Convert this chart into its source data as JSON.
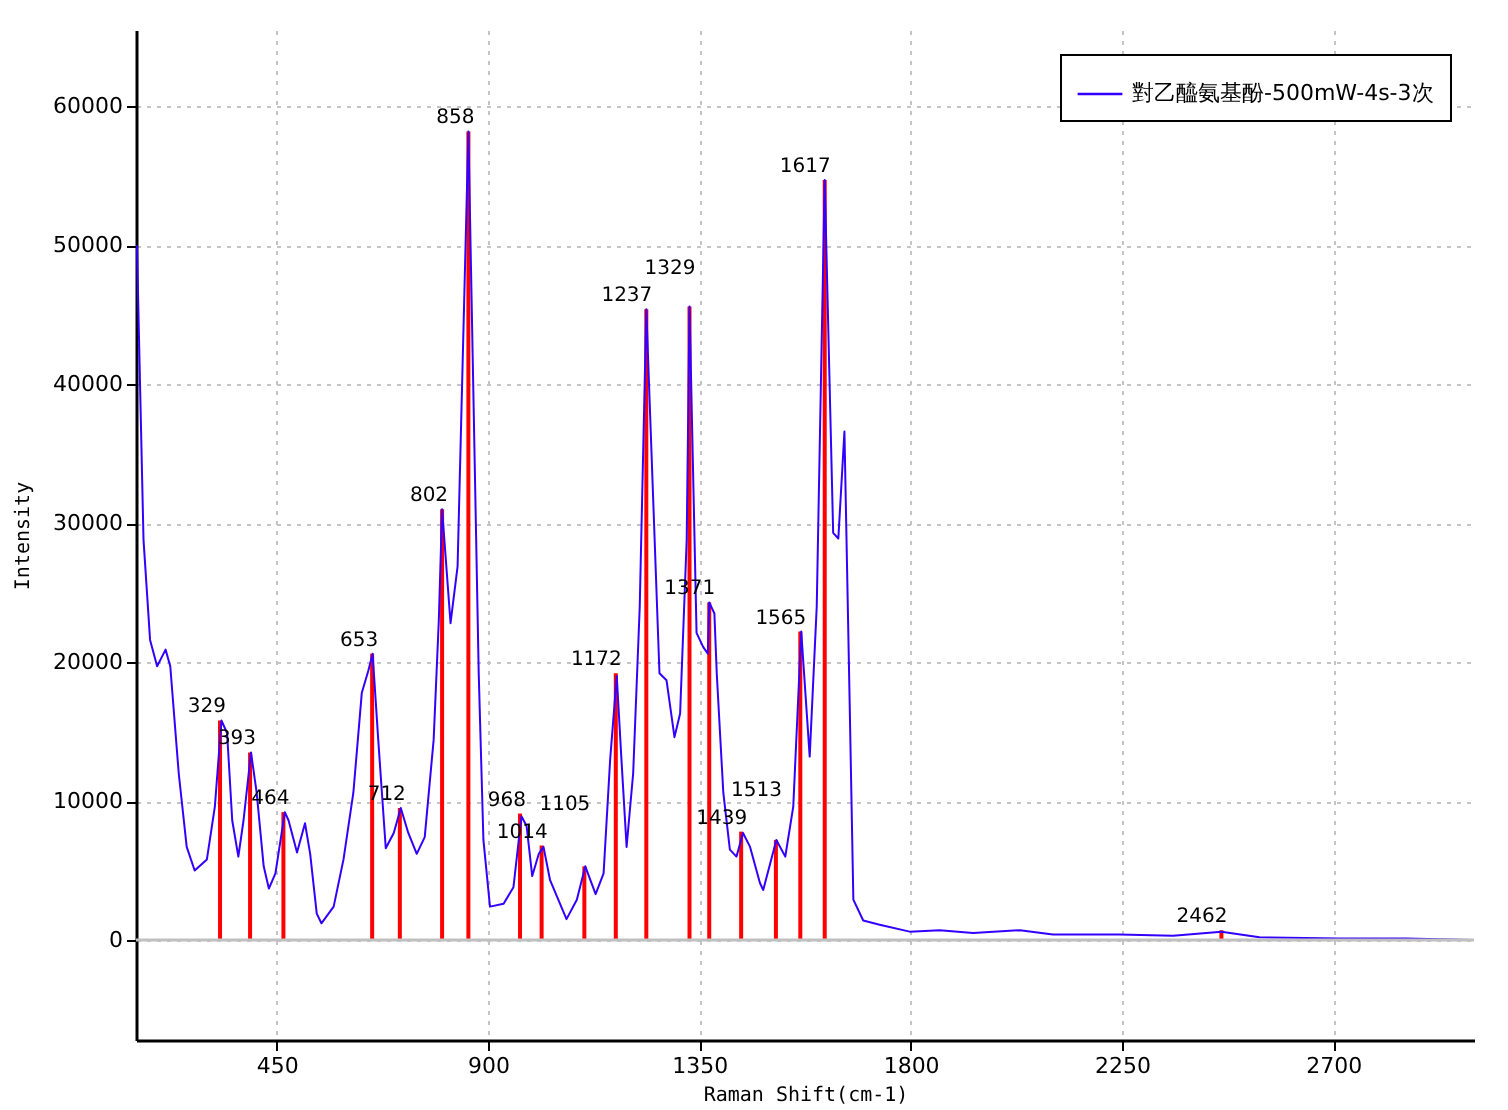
{
  "chart_data": {
    "type": "line",
    "xlabel": "Raman Shift(cm-1)",
    "ylabel": "Intensity",
    "xlim": [
      150,
      3000
    ],
    "ylim": [
      -7200,
      65500
    ],
    "xticks": [
      450,
      900,
      1350,
      1800,
      2250,
      2700
    ],
    "yticks": [
      0,
      10000,
      20000,
      30000,
      40000,
      50000,
      60000
    ],
    "grid": true,
    "legend": "top right",
    "line_style": "solid",
    "ref_lines": [
      {
        "axis": "y",
        "value": 0,
        "color": "#c0c0c0"
      }
    ],
    "series": [
      {
        "name": "對乙醯氨基酚-500mW-4s-3次",
        "color": "#3300ff",
        "x": [
          152,
          166,
          180,
          195,
          213,
          223,
          241,
          258,
          275,
          301,
          318,
          332,
          344,
          355,
          368,
          379,
          395,
          407,
          422,
          433,
          447,
          467,
          475,
          493,
          510,
          521,
          535,
          545,
          571,
          592,
          613,
          631,
          645,
          654,
          666,
          682,
          699,
          714,
          730,
          748,
          765,
          784,
          795,
          802,
          820,
          835,
          858,
          880,
          890,
          904,
          933,
          954,
          971,
          982,
          994,
          1008,
          1018,
          1032,
          1067,
          1089,
          1107,
          1129,
          1146,
          1160,
          1174,
          1184,
          1195,
          1209,
          1223,
          1237,
          1265,
          1280,
          1297,
          1309,
          1323,
          1329,
          1344,
          1358,
          1368,
          1371,
          1382,
          1387,
          1401,
          1415,
          1429,
          1443,
          1458,
          1479,
          1486,
          1514,
          1533,
          1550,
          1567,
          1585,
          1600,
          1617,
          1635,
          1646,
          1659,
          1670,
          1678,
          1699,
          1734,
          1798,
          1862,
          1933,
          2033,
          2103,
          2245,
          2359,
          2462,
          2543,
          2713,
          2855,
          2997
        ],
        "values": [
          50000,
          28800,
          21600,
          19700,
          20900,
          19700,
          12000,
          6700,
          5000,
          5800,
          9600,
          15800,
          14900,
          8600,
          6000,
          8600,
          13500,
          10600,
          5300,
          3700,
          4800,
          9200,
          8600,
          6300,
          8400,
          6200,
          1900,
          1200,
          2400,
          5800,
          10600,
          17800,
          19400,
          20600,
          14400,
          6600,
          7700,
          9500,
          7700,
          6200,
          7400,
          14400,
          23000,
          31000,
          22800,
          26900,
          58200,
          19200,
          7200,
          2400,
          2600,
          3800,
          8900,
          8200,
          4600,
          6200,
          6700,
          4300,
          1500,
          2900,
          5300,
          3300,
          4800,
          13000,
          19000,
          13000,
          6700,
          12000,
          24000,
          45400,
          19200,
          18700,
          14600,
          16300,
          28800,
          45600,
          22100,
          21100,
          20600,
          24300,
          23500,
          19200,
          10600,
          6500,
          6000,
          7700,
          6700,
          4100,
          3600,
          7200,
          6000,
          9600,
          22200,
          13200,
          24000,
          54700,
          29300,
          28900,
          36600,
          17300,
          2900,
          1400,
          1100,
          600,
          700,
          500,
          700,
          400,
          400,
          300,
          600,
          200,
          100,
          100,
          0
        ]
      },
      {
        "type": "bar",
        "color": "#ff0000",
        "x": [
          329,
          393,
          464,
          653,
          712,
          802,
          858,
          968,
          1014,
          1105,
          1172,
          1237,
          1329,
          1371,
          1439,
          1513,
          1565,
          1617,
          2462
        ],
        "values": [
          15800,
          13500,
          9200,
          20600,
          9500,
          31000,
          58200,
          9100,
          6800,
          5300,
          19200,
          45400,
          45600,
          24300,
          7800,
          7200,
          22200,
          54700,
          700
        ]
      }
    ],
    "annotations": [
      {
        "text": "329",
        "x": 329,
        "y": 15800
      },
      {
        "text": "393",
        "x": 393,
        "y": 13500
      },
      {
        "text": "464",
        "x": 464,
        "y": 9200
      },
      {
        "text": "653",
        "x": 653,
        "y": 20600
      },
      {
        "text": "712",
        "x": 712,
        "y": 9500
      },
      {
        "text": "802",
        "x": 802,
        "y": 31000
      },
      {
        "text": "858",
        "x": 858,
        "y": 58200
      },
      {
        "text": "968",
        "x": 968,
        "y": 9100
      },
      {
        "text": "1014",
        "x": 1014,
        "y": 6800
      },
      {
        "text": "1105",
        "x": 1105,
        "y": 5300
      },
      {
        "text": "1172",
        "x": 1172,
        "y": 19200
      },
      {
        "text": "1237",
        "x": 1237,
        "y": 45400
      },
      {
        "text": "1329",
        "x": 1329,
        "y": 45600
      },
      {
        "text": "1371",
        "x": 1371,
        "y": 24300
      },
      {
        "text": "1439",
        "x": 1439,
        "y": 7800
      },
      {
        "text": "1513",
        "x": 1513,
        "y": 7200
      },
      {
        "text": "1565",
        "x": 1565,
        "y": 22200
      },
      {
        "text": "1617",
        "x": 1617,
        "y": 54700
      },
      {
        "text": "2462",
        "x": 2462,
        "y": 700
      }
    ]
  }
}
